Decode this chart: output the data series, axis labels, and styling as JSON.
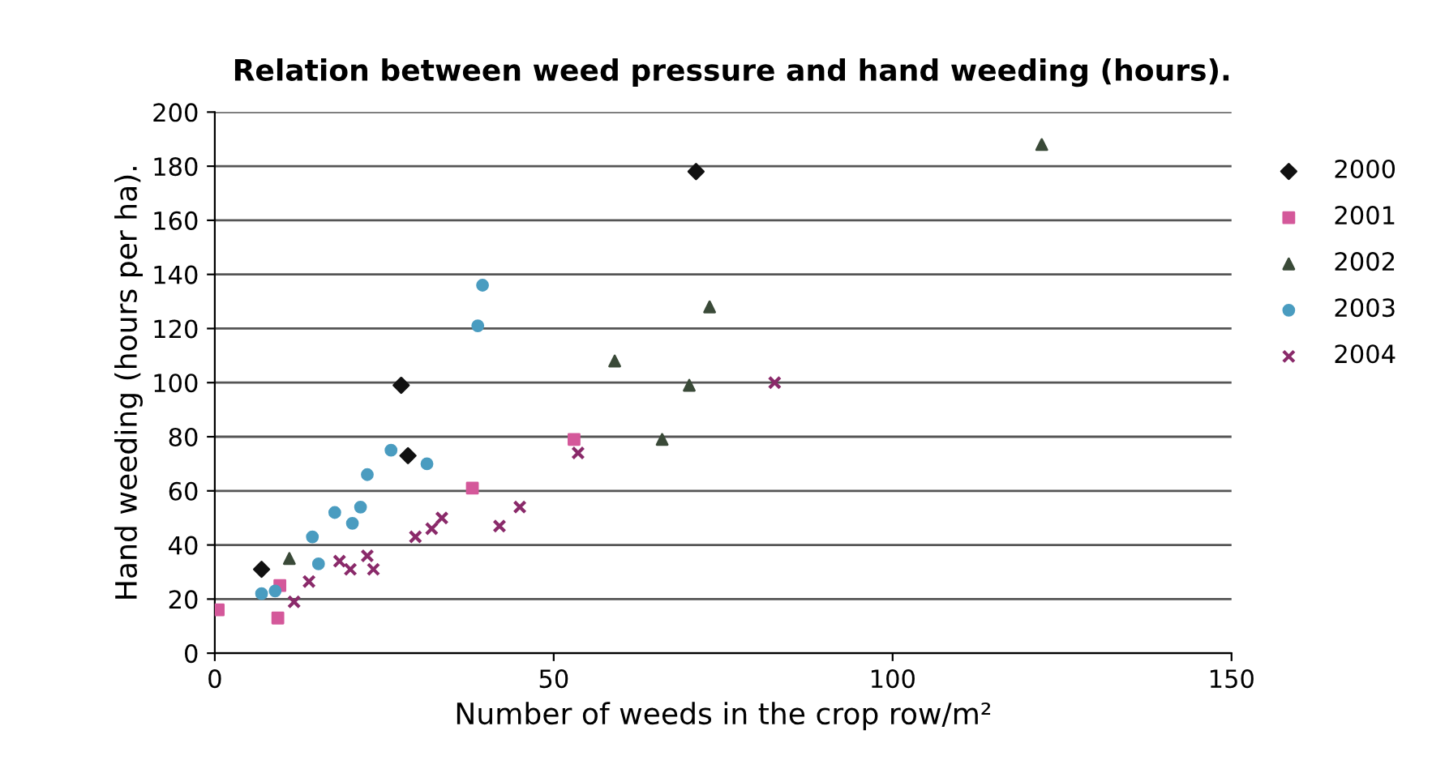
{
  "chart_data": {
    "type": "scatter",
    "title": "Relation between weed pressure and hand weeding (hours).",
    "xlabel": "Number of weeds in the crop row/m²",
    "ylabel": "Hand weeding (hours per ha).",
    "xlim": [
      0,
      150
    ],
    "ylim": [
      0,
      200
    ],
    "xticks": [
      0,
      50,
      100,
      150
    ],
    "yticks": [
      0,
      20,
      40,
      60,
      80,
      100,
      120,
      140,
      160,
      180,
      200
    ],
    "grid": "y",
    "legend": "right",
    "series": [
      {
        "name": "2000",
        "color": "#111111",
        "marker": "diamond",
        "x": [
          6.9,
          27.5,
          28.5,
          71
        ],
        "values": [
          31,
          99,
          73,
          178
        ]
      },
      {
        "name": "2001",
        "color": "#d4589a",
        "marker": "square",
        "x": [
          0.5,
          9.3,
          9.6,
          38,
          53
        ],
        "values": [
          16,
          13,
          25,
          61,
          79
        ]
      },
      {
        "name": "2002",
        "color": "#3a4a38",
        "marker": "triangle",
        "x": [
          11,
          122,
          73,
          59,
          70,
          66
        ],
        "values": [
          35,
          188,
          128,
          108,
          99,
          79
        ]
      },
      {
        "name": "2003",
        "color": "#4a9cc0",
        "marker": "circle",
        "x": [
          39.5,
          38.8,
          26,
          31.3,
          22.5,
          17.7,
          21.5,
          20.3,
          14.4,
          15.3,
          6.9,
          8.9
        ],
        "values": [
          136,
          121,
          75,
          70,
          66,
          52,
          54,
          48,
          43,
          33,
          22,
          23
        ]
      },
      {
        "name": "2004",
        "color": "#8a2a6a",
        "marker": "cross",
        "x": [
          13.9,
          11.7,
          18.4,
          20,
          22.5,
          23.4,
          29.6,
          32,
          33.5,
          42,
          45,
          53.6,
          82.6
        ],
        "values": [
          26.5,
          19,
          34,
          31,
          36,
          31,
          43,
          46,
          50,
          47,
          54,
          74,
          100
        ]
      }
    ]
  }
}
